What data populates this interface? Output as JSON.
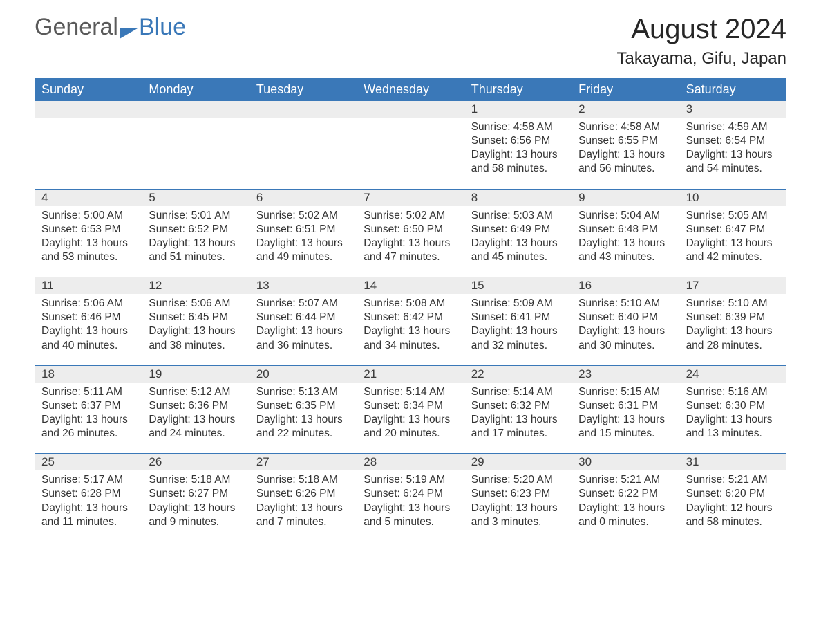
{
  "brand": {
    "part1": "General",
    "part2": "Blue"
  },
  "month_title": "August 2024",
  "location": "Takayama, Gifu, Japan",
  "colors": {
    "header_bg": "#3a78b8",
    "header_text": "#ffffff",
    "daynum_bg": "#ededed",
    "border": "#3a78b8",
    "text": "#333333",
    "title_text": "#262626"
  },
  "weekdays": [
    "Sunday",
    "Monday",
    "Tuesday",
    "Wednesday",
    "Thursday",
    "Friday",
    "Saturday"
  ],
  "weeks": [
    [
      {
        "empty": true
      },
      {
        "empty": true
      },
      {
        "empty": true
      },
      {
        "empty": true
      },
      {
        "day": "1",
        "sunrise": "Sunrise: 4:58 AM",
        "sunset": "Sunset: 6:56 PM",
        "daylight1": "Daylight: 13 hours",
        "daylight2": "and 58 minutes."
      },
      {
        "day": "2",
        "sunrise": "Sunrise: 4:58 AM",
        "sunset": "Sunset: 6:55 PM",
        "daylight1": "Daylight: 13 hours",
        "daylight2": "and 56 minutes."
      },
      {
        "day": "3",
        "sunrise": "Sunrise: 4:59 AM",
        "sunset": "Sunset: 6:54 PM",
        "daylight1": "Daylight: 13 hours",
        "daylight2": "and 54 minutes."
      }
    ],
    [
      {
        "day": "4",
        "sunrise": "Sunrise: 5:00 AM",
        "sunset": "Sunset: 6:53 PM",
        "daylight1": "Daylight: 13 hours",
        "daylight2": "and 53 minutes."
      },
      {
        "day": "5",
        "sunrise": "Sunrise: 5:01 AM",
        "sunset": "Sunset: 6:52 PM",
        "daylight1": "Daylight: 13 hours",
        "daylight2": "and 51 minutes."
      },
      {
        "day": "6",
        "sunrise": "Sunrise: 5:02 AM",
        "sunset": "Sunset: 6:51 PM",
        "daylight1": "Daylight: 13 hours",
        "daylight2": "and 49 minutes."
      },
      {
        "day": "7",
        "sunrise": "Sunrise: 5:02 AM",
        "sunset": "Sunset: 6:50 PM",
        "daylight1": "Daylight: 13 hours",
        "daylight2": "and 47 minutes."
      },
      {
        "day": "8",
        "sunrise": "Sunrise: 5:03 AM",
        "sunset": "Sunset: 6:49 PM",
        "daylight1": "Daylight: 13 hours",
        "daylight2": "and 45 minutes."
      },
      {
        "day": "9",
        "sunrise": "Sunrise: 5:04 AM",
        "sunset": "Sunset: 6:48 PM",
        "daylight1": "Daylight: 13 hours",
        "daylight2": "and 43 minutes."
      },
      {
        "day": "10",
        "sunrise": "Sunrise: 5:05 AM",
        "sunset": "Sunset: 6:47 PM",
        "daylight1": "Daylight: 13 hours",
        "daylight2": "and 42 minutes."
      }
    ],
    [
      {
        "day": "11",
        "sunrise": "Sunrise: 5:06 AM",
        "sunset": "Sunset: 6:46 PM",
        "daylight1": "Daylight: 13 hours",
        "daylight2": "and 40 minutes."
      },
      {
        "day": "12",
        "sunrise": "Sunrise: 5:06 AM",
        "sunset": "Sunset: 6:45 PM",
        "daylight1": "Daylight: 13 hours",
        "daylight2": "and 38 minutes."
      },
      {
        "day": "13",
        "sunrise": "Sunrise: 5:07 AM",
        "sunset": "Sunset: 6:44 PM",
        "daylight1": "Daylight: 13 hours",
        "daylight2": "and 36 minutes."
      },
      {
        "day": "14",
        "sunrise": "Sunrise: 5:08 AM",
        "sunset": "Sunset: 6:42 PM",
        "daylight1": "Daylight: 13 hours",
        "daylight2": "and 34 minutes."
      },
      {
        "day": "15",
        "sunrise": "Sunrise: 5:09 AM",
        "sunset": "Sunset: 6:41 PM",
        "daylight1": "Daylight: 13 hours",
        "daylight2": "and 32 minutes."
      },
      {
        "day": "16",
        "sunrise": "Sunrise: 5:10 AM",
        "sunset": "Sunset: 6:40 PM",
        "daylight1": "Daylight: 13 hours",
        "daylight2": "and 30 minutes."
      },
      {
        "day": "17",
        "sunrise": "Sunrise: 5:10 AM",
        "sunset": "Sunset: 6:39 PM",
        "daylight1": "Daylight: 13 hours",
        "daylight2": "and 28 minutes."
      }
    ],
    [
      {
        "day": "18",
        "sunrise": "Sunrise: 5:11 AM",
        "sunset": "Sunset: 6:37 PM",
        "daylight1": "Daylight: 13 hours",
        "daylight2": "and 26 minutes."
      },
      {
        "day": "19",
        "sunrise": "Sunrise: 5:12 AM",
        "sunset": "Sunset: 6:36 PM",
        "daylight1": "Daylight: 13 hours",
        "daylight2": "and 24 minutes."
      },
      {
        "day": "20",
        "sunrise": "Sunrise: 5:13 AM",
        "sunset": "Sunset: 6:35 PM",
        "daylight1": "Daylight: 13 hours",
        "daylight2": "and 22 minutes."
      },
      {
        "day": "21",
        "sunrise": "Sunrise: 5:14 AM",
        "sunset": "Sunset: 6:34 PM",
        "daylight1": "Daylight: 13 hours",
        "daylight2": "and 20 minutes."
      },
      {
        "day": "22",
        "sunrise": "Sunrise: 5:14 AM",
        "sunset": "Sunset: 6:32 PM",
        "daylight1": "Daylight: 13 hours",
        "daylight2": "and 17 minutes."
      },
      {
        "day": "23",
        "sunrise": "Sunrise: 5:15 AM",
        "sunset": "Sunset: 6:31 PM",
        "daylight1": "Daylight: 13 hours",
        "daylight2": "and 15 minutes."
      },
      {
        "day": "24",
        "sunrise": "Sunrise: 5:16 AM",
        "sunset": "Sunset: 6:30 PM",
        "daylight1": "Daylight: 13 hours",
        "daylight2": "and 13 minutes."
      }
    ],
    [
      {
        "day": "25",
        "sunrise": "Sunrise: 5:17 AM",
        "sunset": "Sunset: 6:28 PM",
        "daylight1": "Daylight: 13 hours",
        "daylight2": "and 11 minutes."
      },
      {
        "day": "26",
        "sunrise": "Sunrise: 5:18 AM",
        "sunset": "Sunset: 6:27 PM",
        "daylight1": "Daylight: 13 hours",
        "daylight2": "and 9 minutes."
      },
      {
        "day": "27",
        "sunrise": "Sunrise: 5:18 AM",
        "sunset": "Sunset: 6:26 PM",
        "daylight1": "Daylight: 13 hours",
        "daylight2": "and 7 minutes."
      },
      {
        "day": "28",
        "sunrise": "Sunrise: 5:19 AM",
        "sunset": "Sunset: 6:24 PM",
        "daylight1": "Daylight: 13 hours",
        "daylight2": "and 5 minutes."
      },
      {
        "day": "29",
        "sunrise": "Sunrise: 5:20 AM",
        "sunset": "Sunset: 6:23 PM",
        "daylight1": "Daylight: 13 hours",
        "daylight2": "and 3 minutes."
      },
      {
        "day": "30",
        "sunrise": "Sunrise: 5:21 AM",
        "sunset": "Sunset: 6:22 PM",
        "daylight1": "Daylight: 13 hours",
        "daylight2": "and 0 minutes."
      },
      {
        "day": "31",
        "sunrise": "Sunrise: 5:21 AM",
        "sunset": "Sunset: 6:20 PM",
        "daylight1": "Daylight: 12 hours",
        "daylight2": "and 58 minutes."
      }
    ]
  ]
}
